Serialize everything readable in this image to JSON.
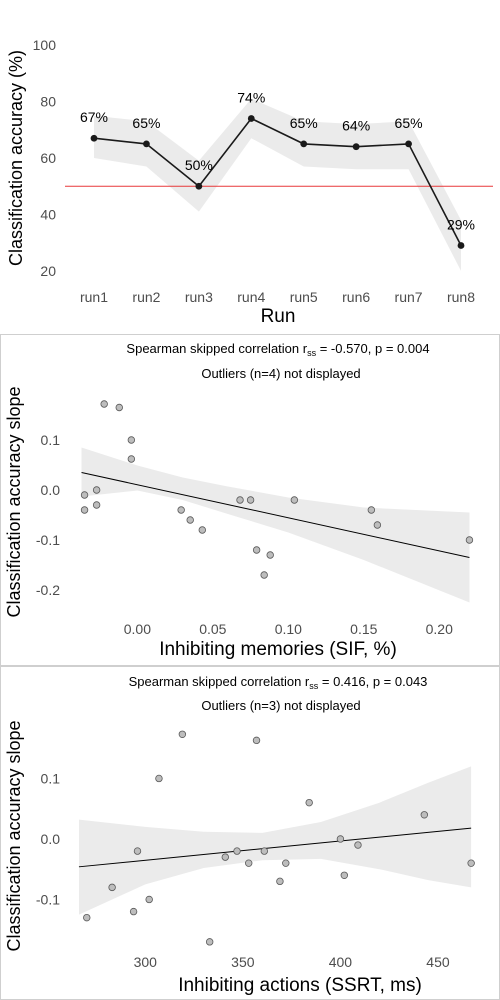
{
  "chart_data": [
    {
      "type": "line",
      "xlabel": "Run",
      "ylabel": "Classification accuracy (%)",
      "categories": [
        "run1",
        "run2",
        "run3",
        "run4",
        "run5",
        "run6",
        "run7",
        "run8"
      ],
      "values": [
        67,
        65,
        50,
        74,
        65,
        64,
        65,
        29
      ],
      "point_labels": [
        "67%",
        "65%",
        "50%",
        "74%",
        "65%",
        "64%",
        "65%",
        "29%"
      ],
      "ci_lower": [
        60,
        57,
        41,
        67,
        57,
        56,
        56,
        20
      ],
      "ci_upper": [
        75,
        73,
        59,
        81,
        73,
        72,
        73,
        38
      ],
      "ylim": [
        15,
        105
      ],
      "yticks": [
        20,
        40,
        60,
        80,
        100
      ],
      "reference_line": 50,
      "colors": {
        "line": "#1a1a1a",
        "ribbon": "#ebebeb",
        "reference": "#e8393a"
      },
      "grid": false
    },
    {
      "type": "scatter",
      "title_prefix": "Spearman skipped correlation r",
      "title_sub": "ss",
      "title_suffix": " = -0.570, p = 0.004",
      "subtitle": "Outliers (n=4) not displayed",
      "xlabel": "Inhibiting memories (SIF, %)",
      "ylabel": "Classification accuracy slope",
      "xlim": [
        -0.04,
        0.225
      ],
      "ylim": [
        -0.27,
        0.19
      ],
      "xticks": [
        0.0,
        0.05,
        0.1,
        0.15,
        0.2
      ],
      "xtick_labels": [
        "0.00",
        "0.05",
        "0.10",
        "0.15",
        "0.20"
      ],
      "yticks": [
        -0.2,
        -0.1,
        0.0,
        0.1
      ],
      "ytick_labels": [
        "-0.2",
        "-0.1",
        "0.0",
        "0.1"
      ],
      "points": [
        {
          "x": -0.035,
          "y": -0.01
        },
        {
          "x": -0.035,
          "y": -0.04
        },
        {
          "x": -0.027,
          "y": 0.0
        },
        {
          "x": -0.027,
          "y": -0.03
        },
        {
          "x": -0.022,
          "y": 0.172
        },
        {
          "x": -0.012,
          "y": 0.165
        },
        {
          "x": -0.004,
          "y": 0.1
        },
        {
          "x": -0.004,
          "y": 0.062
        },
        {
          "x": 0.029,
          "y": -0.04
        },
        {
          "x": 0.035,
          "y": -0.06
        },
        {
          "x": 0.043,
          "y": -0.08
        },
        {
          "x": 0.068,
          "y": -0.02
        },
        {
          "x": 0.075,
          "y": -0.02
        },
        {
          "x": 0.079,
          "y": -0.12
        },
        {
          "x": 0.084,
          "y": -0.17
        },
        {
          "x": 0.088,
          "y": -0.13
        },
        {
          "x": 0.104,
          "y": -0.02
        },
        {
          "x": 0.155,
          "y": -0.04
        },
        {
          "x": 0.159,
          "y": -0.07
        },
        {
          "x": 0.22,
          "y": -0.1
        }
      ],
      "fit": {
        "x": [
          -0.037,
          0.22
        ],
        "y": [
          0.035,
          -0.135
        ]
      },
      "band": [
        {
          "x": -0.037,
          "lo": -0.013,
          "hi": 0.085
        },
        {
          "x": 0.0,
          "lo": -0.001,
          "hi": 0.049
        },
        {
          "x": 0.03,
          "lo": -0.02,
          "hi": 0.025
        },
        {
          "x": 0.06,
          "lo": -0.048,
          "hi": 0.007
        },
        {
          "x": 0.1,
          "lo": -0.085,
          "hi": -0.015
        },
        {
          "x": 0.15,
          "lo": -0.14,
          "hi": -0.035
        },
        {
          "x": 0.22,
          "lo": -0.225,
          "hi": -0.045
        }
      ],
      "colors": {
        "point": "#bdbdbd",
        "line": "#000000",
        "band": "#ebebeb"
      },
      "grid": false
    },
    {
      "type": "scatter",
      "title_prefix": "Spearman skipped correlation r",
      "title_sub": "ss",
      "title_suffix": " = 0.416, p = 0.043",
      "subtitle": "Outliers (n=3) not displayed",
      "xlabel": "Inhibiting actions (SSRT, ms)",
      "ylabel": "Classification accuracy slope",
      "xlim": [
        265,
        470
      ],
      "ylim": [
        -0.2,
        0.19
      ],
      "xticks": [
        300,
        350,
        400,
        450
      ],
      "xtick_labels": [
        "300",
        "350",
        "400",
        "450"
      ],
      "yticks": [
        -0.1,
        0.0,
        0.1
      ],
      "ytick_labels": [
        "-0.1",
        "0.0",
        "0.1"
      ],
      "points": [
        {
          "x": 270,
          "y": -0.13
        },
        {
          "x": 283,
          "y": -0.08
        },
        {
          "x": 294,
          "y": -0.12
        },
        {
          "x": 296,
          "y": -0.02
        },
        {
          "x": 302,
          "y": -0.1
        },
        {
          "x": 307,
          "y": 0.1
        },
        {
          "x": 319,
          "y": 0.173
        },
        {
          "x": 333,
          "y": -0.17
        },
        {
          "x": 341,
          "y": -0.03
        },
        {
          "x": 347,
          "y": -0.02
        },
        {
          "x": 353,
          "y": -0.04
        },
        {
          "x": 357,
          "y": 0.163
        },
        {
          "x": 361,
          "y": -0.02
        },
        {
          "x": 369,
          "y": -0.07
        },
        {
          "x": 372,
          "y": -0.04
        },
        {
          "x": 384,
          "y": 0.06
        },
        {
          "x": 400,
          "y": 0.0
        },
        {
          "x": 402,
          "y": -0.06
        },
        {
          "x": 409,
          "y": -0.01
        },
        {
          "x": 443,
          "y": 0.04
        },
        {
          "x": 467,
          "y": -0.04
        }
      ],
      "fit": {
        "x": [
          266,
          467
        ],
        "y": [
          -0.046,
          0.018
        ]
      },
      "band": [
        {
          "x": 266,
          "lo": -0.125,
          "hi": 0.032
        },
        {
          "x": 300,
          "lo": -0.075,
          "hi": 0.02
        },
        {
          "x": 330,
          "lo": -0.048,
          "hi": 0.012
        },
        {
          "x": 360,
          "lo": -0.035,
          "hi": 0.01
        },
        {
          "x": 390,
          "lo": -0.033,
          "hi": 0.028
        },
        {
          "x": 420,
          "lo": -0.05,
          "hi": 0.06
        },
        {
          "x": 445,
          "lo": -0.068,
          "hi": 0.093
        },
        {
          "x": 467,
          "lo": -0.08,
          "hi": 0.12
        }
      ],
      "colors": {
        "point": "#bdbdbd",
        "line": "#000000",
        "band": "#ebebeb"
      },
      "grid": false
    }
  ]
}
